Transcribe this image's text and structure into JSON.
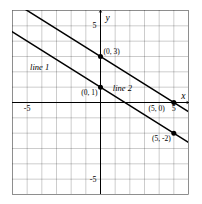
{
  "chart_data": {
    "type": "line",
    "xlabel": "x",
    "ylabel": "y",
    "xlim": [
      -6,
      6
    ],
    "ylim": [
      -6,
      6
    ],
    "xticks": [
      {
        "value": -6,
        "label": null
      },
      -5,
      {
        "value": -4,
        "label": null
      },
      {
        "value": -3,
        "label": null
      },
      {
        "value": -2,
        "label": null
      },
      {
        "value": -1,
        "label": null
      },
      {
        "value": 0,
        "label": null
      },
      {
        "value": 1,
        "label": null
      },
      {
        "value": 2,
        "label": null
      },
      {
        "value": 3,
        "label": null
      },
      {
        "value": 4,
        "label": null
      },
      5,
      {
        "value": 6,
        "label": null
      }
    ],
    "yticks": [
      {
        "value": -6,
        "label": null
      },
      -5,
      {
        "value": -4,
        "label": null
      },
      {
        "value": -3,
        "label": null
      },
      {
        "value": -2,
        "label": null
      },
      {
        "value": -1,
        "label": null
      },
      {
        "value": 0,
        "label": null
      },
      {
        "value": 1,
        "label": null
      },
      {
        "value": 2,
        "label": null
      },
      {
        "value": 3,
        "label": null
      },
      {
        "value": 4,
        "label": null
      },
      5,
      {
        "value": 6,
        "label": null
      }
    ],
    "grid": true,
    "series": [
      {
        "name": "line 1",
        "color": "#000000",
        "x": [
          0,
          5
        ],
        "values": [
          1,
          -2
        ]
      },
      {
        "name": "line 2",
        "color": "#000000",
        "x": [
          0,
          5
        ],
        "values": [
          3,
          0
        ]
      }
    ],
    "annotations": [
      {
        "text": "(0, 1)",
        "x": 0,
        "y": 1
      },
      {
        "text": "(0, 3)",
        "x": 0,
        "y": 3
      },
      {
        "text": "(5, -2)",
        "x": 5,
        "y": -2
      },
      {
        "text": "(5, 0)",
        "x": 5,
        "y": 0
      }
    ]
  }
}
